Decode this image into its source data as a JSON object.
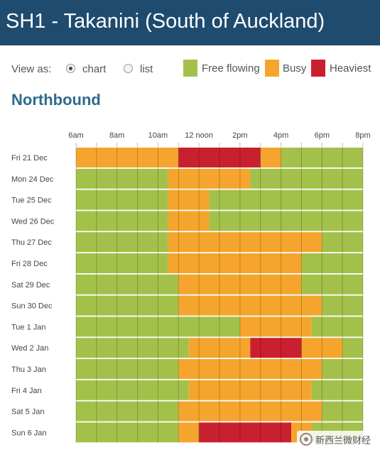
{
  "header": {
    "title": "SH1 - Takanini (South of Auckland)"
  },
  "controls": {
    "view_as_label": "View as:",
    "options": [
      {
        "label": "chart",
        "selected": true
      },
      {
        "label": "list",
        "selected": false
      }
    ]
  },
  "legend": [
    {
      "label": "Free flowing",
      "color": "#a3c14a"
    },
    {
      "label": "Busy",
      "color": "#f5a52d"
    },
    {
      "label": "Heaviest",
      "color": "#c8202f"
    }
  ],
  "section_title": "Northbound",
  "watermark": {
    "text": "新西兰微财经"
  },
  "chart_data": {
    "type": "timeline",
    "x_ticks": [
      "6am",
      "8am",
      "10am",
      "12 noon",
      "2pm",
      "4pm",
      "6pm",
      "8pm"
    ],
    "x_range_hours": [
      6,
      20
    ],
    "status_colors": {
      "free": "#a3c14a",
      "busy": "#f5a52d",
      "heaviest": "#c8202f"
    },
    "rows": [
      {
        "label": "Fri 21 Dec",
        "segments": [
          {
            "start": 6,
            "end": 11,
            "status": "busy"
          },
          {
            "start": 11,
            "end": 15,
            "status": "heaviest"
          },
          {
            "start": 15,
            "end": 16,
            "status": "busy"
          },
          {
            "start": 16,
            "end": 20,
            "status": "free"
          }
        ]
      },
      {
        "label": "Mon 24 Dec",
        "segments": [
          {
            "start": 6,
            "end": 10.5,
            "status": "free"
          },
          {
            "start": 10.5,
            "end": 14.5,
            "status": "busy"
          },
          {
            "start": 14.5,
            "end": 20,
            "status": "free"
          }
        ]
      },
      {
        "label": "Tue 25 Dec",
        "segments": [
          {
            "start": 6,
            "end": 10.5,
            "status": "free"
          },
          {
            "start": 10.5,
            "end": 12.5,
            "status": "busy"
          },
          {
            "start": 12.5,
            "end": 20,
            "status": "free"
          }
        ]
      },
      {
        "label": "Wed 26 Dec",
        "segments": [
          {
            "start": 6,
            "end": 10.5,
            "status": "free"
          },
          {
            "start": 10.5,
            "end": 12.5,
            "status": "busy"
          },
          {
            "start": 12.5,
            "end": 20,
            "status": "free"
          }
        ]
      },
      {
        "label": "Thu 27 Dec",
        "segments": [
          {
            "start": 6,
            "end": 10.5,
            "status": "free"
          },
          {
            "start": 10.5,
            "end": 18,
            "status": "busy"
          },
          {
            "start": 18,
            "end": 20,
            "status": "free"
          }
        ]
      },
      {
        "label": "Fri 28 Dec",
        "segments": [
          {
            "start": 6,
            "end": 10.5,
            "status": "free"
          },
          {
            "start": 10.5,
            "end": 17,
            "status": "busy"
          },
          {
            "start": 17,
            "end": 20,
            "status": "free"
          }
        ]
      },
      {
        "label": "Sat 29 Dec",
        "segments": [
          {
            "start": 6,
            "end": 11,
            "status": "free"
          },
          {
            "start": 11,
            "end": 17,
            "status": "busy"
          },
          {
            "start": 17,
            "end": 20,
            "status": "free"
          }
        ]
      },
      {
        "label": "Sun 30 Dec",
        "segments": [
          {
            "start": 6,
            "end": 11,
            "status": "free"
          },
          {
            "start": 11,
            "end": 18,
            "status": "busy"
          },
          {
            "start": 18,
            "end": 20,
            "status": "free"
          }
        ]
      },
      {
        "label": "Tue 1 Jan",
        "segments": [
          {
            "start": 6,
            "end": 14,
            "status": "free"
          },
          {
            "start": 14,
            "end": 17.5,
            "status": "busy"
          },
          {
            "start": 17.5,
            "end": 20,
            "status": "free"
          }
        ]
      },
      {
        "label": "Wed 2 Jan",
        "segments": [
          {
            "start": 6,
            "end": 11.5,
            "status": "free"
          },
          {
            "start": 11.5,
            "end": 14.5,
            "status": "busy"
          },
          {
            "start": 14.5,
            "end": 17,
            "status": "heaviest"
          },
          {
            "start": 17,
            "end": 19,
            "status": "busy"
          },
          {
            "start": 19,
            "end": 20,
            "status": "free"
          }
        ]
      },
      {
        "label": "Thu 3 Jan",
        "segments": [
          {
            "start": 6,
            "end": 11,
            "status": "free"
          },
          {
            "start": 11,
            "end": 18,
            "status": "busy"
          },
          {
            "start": 18,
            "end": 20,
            "status": "free"
          }
        ]
      },
      {
        "label": "Fri 4 Jan",
        "segments": [
          {
            "start": 6,
            "end": 11.5,
            "status": "free"
          },
          {
            "start": 11.5,
            "end": 17.5,
            "status": "busy"
          },
          {
            "start": 17.5,
            "end": 20,
            "status": "free"
          }
        ]
      },
      {
        "label": "Sat 5 Jan",
        "segments": [
          {
            "start": 6,
            "end": 11,
            "status": "free"
          },
          {
            "start": 11,
            "end": 18,
            "status": "busy"
          },
          {
            "start": 18,
            "end": 20,
            "status": "free"
          }
        ]
      },
      {
        "label": "Sun 6 Jan",
        "segments": [
          {
            "start": 6,
            "end": 11,
            "status": "free"
          },
          {
            "start": 11,
            "end": 12,
            "status": "busy"
          },
          {
            "start": 12,
            "end": 16.5,
            "status": "heaviest"
          },
          {
            "start": 16.5,
            "end": 17.5,
            "status": "busy"
          },
          {
            "start": 17.5,
            "end": 20,
            "status": "free"
          }
        ]
      }
    ]
  }
}
